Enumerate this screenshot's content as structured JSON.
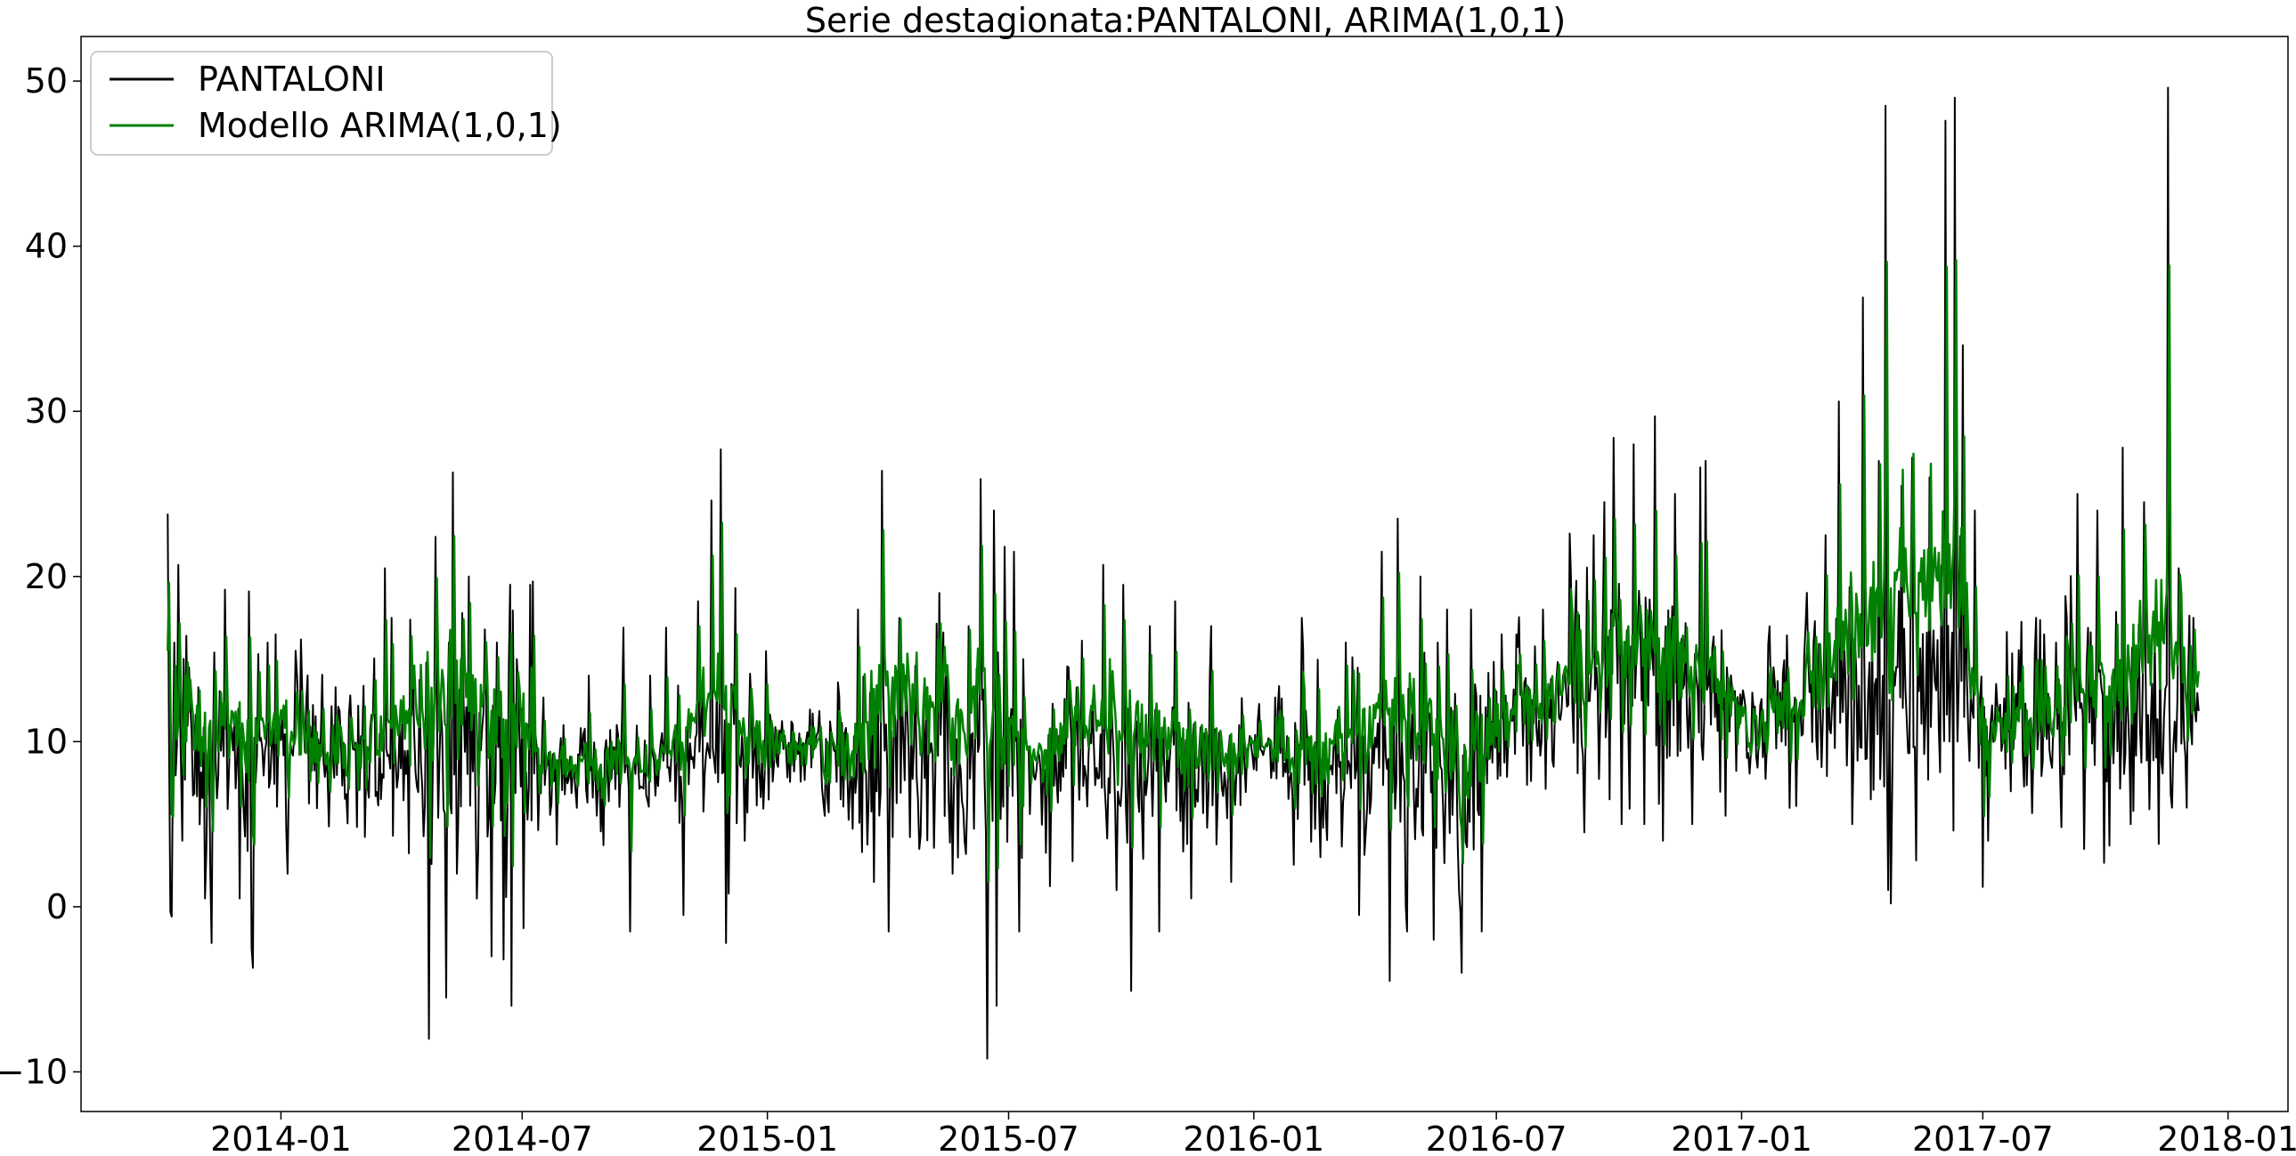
{
  "chart_data": {
    "type": "line",
    "title": "Serie destagionata:PANTALONI, ARIMA(1,0,1)",
    "xlabel": "",
    "ylabel": "",
    "x_start": "2013-10-08",
    "x_end": "2017-12-10",
    "xlim": [
      "2013-08-04",
      "2018-02-15"
    ],
    "ylim": [
      -12.4,
      52.7
    ],
    "x_ticks": [
      "2014-01",
      "2014-07",
      "2015-01",
      "2015-07",
      "2016-01",
      "2016-07",
      "2017-01",
      "2017-07",
      "2018-01"
    ],
    "y_ticks": [
      -10,
      0,
      10,
      20,
      30,
      40,
      50
    ],
    "y_tick_labels": [
      "−10",
      "0",
      "10",
      "20",
      "30",
      "40",
      "50"
    ],
    "grid": false,
    "legend_position": "top-left",
    "series": [
      {
        "name": "PANTALONI",
        "color": "#000000",
        "profile": [
          [
            "2013-10-08",
            9.5,
            5.0
          ],
          [
            "2014-01-01",
            9.0,
            2.5
          ],
          [
            "2014-01-20",
            9.5,
            3.0
          ],
          [
            "2014-06-25",
            9.0,
            5.5
          ],
          [
            "2014-07-20",
            8.0,
            2.5
          ],
          [
            "2015-01-01",
            9.5,
            3.0
          ],
          [
            "2015-01-25",
            9.5,
            1.5
          ],
          [
            "2015-03-01",
            8.5,
            4.5
          ],
          [
            "2015-07-01",
            9.0,
            4.0
          ],
          [
            "2015-12-20",
            9.0,
            3.5
          ],
          [
            "2016-01-05",
            10.0,
            1.5
          ],
          [
            "2016-02-10",
            8.5,
            4.0
          ],
          [
            "2016-06-20",
            8.0,
            4.5
          ],
          [
            "2016-07-10",
            11.5,
            3.0
          ],
          [
            "2016-09-01",
            13.0,
            5.0
          ],
          [
            "2016-12-15",
            12.5,
            5.0
          ],
          [
            "2017-01-05",
            10.5,
            2.0
          ],
          [
            "2017-02-15",
            12.0,
            4.5
          ],
          [
            "2017-06-25",
            13.0,
            5.0
          ],
          [
            "2017-07-10",
            11.0,
            3.0
          ],
          [
            "2017-09-01",
            12.0,
            4.5
          ],
          [
            "2017-12-10",
            12.0,
            4.5
          ]
        ],
        "points": [
          [
            "2013-10-08",
            23.8
          ],
          [
            "2013-10-09",
            10.0
          ],
          [
            "2013-10-10",
            -0.3
          ],
          [
            "2013-10-11",
            -0.6
          ],
          [
            "2013-10-13",
            16.0
          ],
          [
            "2013-10-16",
            20.7
          ],
          [
            "2013-10-19",
            4.0
          ],
          [
            "2013-10-24",
            14.5
          ],
          [
            "2013-11-05",
            0.5
          ],
          [
            "2013-11-10",
            -2.2
          ],
          [
            "2013-11-12",
            15.4
          ],
          [
            "2013-11-20",
            19.2
          ],
          [
            "2013-12-01",
            0.5
          ],
          [
            "2013-12-08",
            19.1
          ],
          [
            "2013-12-10",
            -2.5
          ],
          [
            "2013-12-11",
            -3.7
          ],
          [
            "2013-12-15",
            15.3
          ],
          [
            "2013-12-22",
            16.0
          ],
          [
            "2013-12-28",
            16.5
          ],
          [
            "2014-01-06",
            2.0
          ],
          [
            "2014-01-12",
            15.5
          ],
          [
            "2014-02-22",
            12.8
          ],
          [
            "2014-03-20",
            20.5
          ],
          [
            "2014-03-25",
            17.5
          ],
          [
            "2014-04-10",
            14.0
          ],
          [
            "2014-04-22",
            -8.0
          ],
          [
            "2014-04-27",
            22.4
          ],
          [
            "2014-05-05",
            -5.5
          ],
          [
            "2014-05-10",
            26.3
          ],
          [
            "2014-05-13",
            2.0
          ],
          [
            "2014-05-22",
            20.0
          ],
          [
            "2014-06-03",
            16.8
          ],
          [
            "2014-06-08",
            -3.0
          ],
          [
            "2014-06-12",
            16.0
          ],
          [
            "2014-06-17",
            -3.2
          ],
          [
            "2014-06-21",
            14.5
          ],
          [
            "2014-06-23",
            -6.0
          ],
          [
            "2014-06-27",
            15.0
          ],
          [
            "2014-07-02",
            -1.3
          ],
          [
            "2014-07-07",
            19.5
          ],
          [
            "2014-07-09",
            19.7
          ],
          [
            "2014-08-01",
            11.0
          ],
          [
            "2014-08-20",
            14.0
          ],
          [
            "2014-09-15",
            16.9
          ],
          [
            "2014-09-20",
            -1.5
          ],
          [
            "2014-10-05",
            14.0
          ],
          [
            "2014-10-17",
            16.9
          ],
          [
            "2014-10-30",
            -0.5
          ],
          [
            "2014-11-10",
            18.5
          ],
          [
            "2014-11-20",
            24.6
          ],
          [
            "2014-11-27",
            27.7
          ],
          [
            "2014-12-01",
            -2.2
          ],
          [
            "2014-12-03",
            0.8
          ],
          [
            "2014-12-08",
            19.3
          ],
          [
            "2014-12-15",
            4.0
          ],
          [
            "2015-01-15",
            9.5
          ],
          [
            "2015-02-04",
            11.7
          ],
          [
            "2015-03-10",
            18.0
          ],
          [
            "2015-03-22",
            1.5
          ],
          [
            "2015-03-28",
            26.4
          ],
          [
            "2015-04-02",
            -1.5
          ],
          [
            "2015-04-10",
            17.5
          ],
          [
            "2015-04-25",
            3.5
          ],
          [
            "2015-05-10",
            19.0
          ],
          [
            "2015-05-20",
            2.0
          ],
          [
            "2015-06-01",
            17.0
          ],
          [
            "2015-06-10",
            25.9
          ],
          [
            "2015-06-15",
            -9.2
          ],
          [
            "2015-06-20",
            24.0
          ],
          [
            "2015-06-22",
            -6.0
          ],
          [
            "2015-06-28",
            21.8
          ],
          [
            "2015-07-05",
            21.5
          ],
          [
            "2015-07-09",
            -1.5
          ],
          [
            "2015-07-12",
            15.0
          ],
          [
            "2015-08-15",
            14.5
          ],
          [
            "2015-09-10",
            20.7
          ],
          [
            "2015-09-20",
            1.0
          ],
          [
            "2015-09-25",
            19.5
          ],
          [
            "2015-10-01",
            -5.1
          ],
          [
            "2015-10-15",
            17.0
          ],
          [
            "2015-10-22",
            -1.5
          ],
          [
            "2015-11-03",
            18.5
          ],
          [
            "2015-11-15",
            0.5
          ],
          [
            "2015-11-30",
            17.0
          ],
          [
            "2015-12-15",
            1.5
          ],
          [
            "2016-02-06",
            17.5
          ],
          [
            "2016-02-20",
            3.0
          ],
          [
            "2016-03-10",
            16.0
          ],
          [
            "2016-03-20",
            -0.5
          ],
          [
            "2016-04-06",
            21.5
          ],
          [
            "2016-04-12",
            -4.5
          ],
          [
            "2016-04-18",
            23.5
          ],
          [
            "2016-04-25",
            -1.5
          ],
          [
            "2016-05-05",
            20.0
          ],
          [
            "2016-05-15",
            -2.0
          ],
          [
            "2016-05-25",
            18.0
          ],
          [
            "2016-06-05",
            -4.0
          ],
          [
            "2016-06-12",
            18.0
          ],
          [
            "2016-06-20",
            -1.5
          ],
          [
            "2016-07-05",
            16.5
          ],
          [
            "2016-08-05",
            18.0
          ],
          [
            "2016-08-25",
            22.6
          ],
          [
            "2016-09-05",
            4.5
          ],
          [
            "2016-09-12",
            22.5
          ],
          [
            "2016-09-20",
            24.5
          ],
          [
            "2016-09-27",
            28.4
          ],
          [
            "2016-10-03",
            5.0
          ],
          [
            "2016-10-12",
            28.0
          ],
          [
            "2016-10-20",
            5.0
          ],
          [
            "2016-10-28",
            29.7
          ],
          [
            "2016-11-03",
            4.0
          ],
          [
            "2016-11-12",
            25.0
          ],
          [
            "2016-11-25",
            5.0
          ],
          [
            "2016-12-01",
            26.6
          ],
          [
            "2016-12-05",
            27.0
          ],
          [
            "2016-12-20",
            5.5
          ],
          [
            "2017-01-25",
            14.5
          ],
          [
            "2017-02-20",
            15.0
          ],
          [
            "2017-03-05",
            22.5
          ],
          [
            "2017-03-15",
            30.6
          ],
          [
            "2017-03-25",
            5.0
          ],
          [
            "2017-04-02",
            36.9
          ],
          [
            "2017-04-08",
            6.5
          ],
          [
            "2017-04-14",
            27.0
          ],
          [
            "2017-04-19",
            48.5
          ],
          [
            "2017-04-21",
            1.0
          ],
          [
            "2017-04-23",
            0.2
          ],
          [
            "2017-05-01",
            25.5
          ],
          [
            "2017-05-09",
            27.2
          ],
          [
            "2017-05-12",
            2.8
          ],
          [
            "2017-05-22",
            26.0
          ],
          [
            "2017-06-03",
            47.6
          ],
          [
            "2017-06-06",
            10.0
          ],
          [
            "2017-06-10",
            49.0
          ],
          [
            "2017-06-12",
            10.0
          ],
          [
            "2017-06-16",
            34.0
          ],
          [
            "2017-06-25",
            24.0
          ],
          [
            "2017-07-01",
            1.2
          ],
          [
            "2017-07-05",
            4.0
          ],
          [
            "2017-08-10",
            17.5
          ],
          [
            "2017-08-25",
            16.0
          ],
          [
            "2017-09-10",
            25.0
          ],
          [
            "2017-09-15",
            3.5
          ],
          [
            "2017-09-25",
            24.0
          ],
          [
            "2017-10-04",
            3.7
          ],
          [
            "2017-10-14",
            27.8
          ],
          [
            "2017-10-20",
            5.0
          ],
          [
            "2017-10-30",
            24.5
          ],
          [
            "2017-11-10",
            3.8
          ],
          [
            "2017-11-17",
            49.6
          ],
          [
            "2017-11-20",
            6.0
          ],
          [
            "2017-11-25",
            20.5
          ],
          [
            "2017-12-01",
            6.0
          ],
          [
            "2017-12-06",
            17.5
          ]
        ]
      },
      {
        "name": "Modello ARIMA(1,0,1)",
        "color": "#008000",
        "smoothing": 0.55,
        "points": [
          [
            "2013-10-08",
            15.5
          ],
          [
            "2013-10-10",
            12.5
          ],
          [
            "2014-01-05",
            12.5
          ],
          [
            "2014-01-15",
            9.2
          ],
          [
            "2014-03-01",
            9.8
          ],
          [
            "2014-03-20",
            13.0
          ],
          [
            "2014-05-10",
            17.0
          ],
          [
            "2014-06-25",
            12.3
          ],
          [
            "2014-07-08",
            14.5
          ],
          [
            "2014-07-12",
            9.5
          ],
          [
            "2014-08-15",
            8.8
          ],
          [
            "2014-10-15",
            9.5
          ],
          [
            "2014-11-27",
            17.5
          ],
          [
            "2014-12-05",
            13.0
          ],
          [
            "2015-01-15",
            9.8
          ],
          [
            "2015-03-01",
            9.6
          ],
          [
            "2015-03-28",
            17.5
          ],
          [
            "2015-05-15",
            14.0
          ],
          [
            "2015-06-10",
            16.5
          ],
          [
            "2015-06-20",
            12.5
          ],
          [
            "2015-07-15",
            9.5
          ],
          [
            "2015-09-15",
            15.0
          ],
          [
            "2015-11-01",
            11.5
          ],
          [
            "2016-01-01",
            10.0
          ],
          [
            "2016-02-10",
            10.0
          ],
          [
            "2016-04-18",
            15.5
          ],
          [
            "2016-06-15",
            9.5
          ],
          [
            "2016-07-05",
            11.5
          ],
          [
            "2016-09-27",
            17.0
          ],
          [
            "2016-12-05",
            16.0
          ],
          [
            "2017-01-05",
            10.5
          ],
          [
            "2017-02-15",
            12.5
          ],
          [
            "2017-04-19",
            26.0
          ],
          [
            "2017-06-10",
            26.5
          ],
          [
            "2017-06-28",
            12.0
          ],
          [
            "2017-07-05",
            10.0
          ],
          [
            "2017-08-15",
            12.0
          ],
          [
            "2017-10-14",
            16.0
          ],
          [
            "2017-11-17",
            25.0
          ],
          [
            "2017-12-06",
            12.0
          ]
        ]
      }
    ]
  },
  "legend": {
    "items": [
      {
        "label": "PANTALONI",
        "color": "#000000"
      },
      {
        "label": "Modello ARIMA(1,0,1)",
        "color": "#008000"
      }
    ]
  }
}
